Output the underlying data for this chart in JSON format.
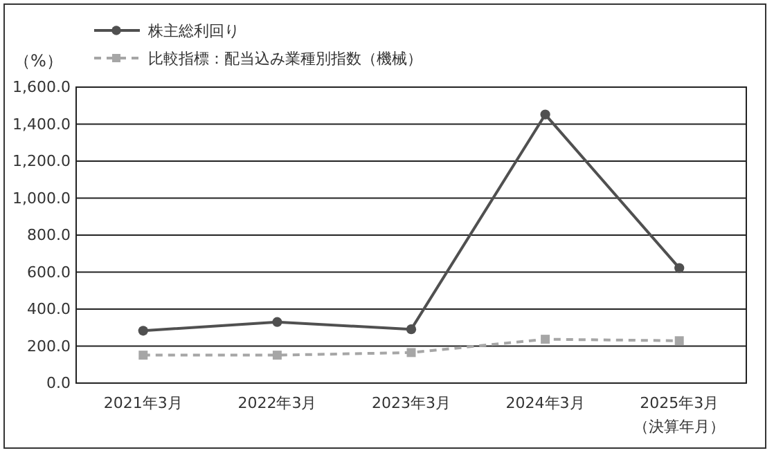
{
  "chart_data": {
    "type": "line",
    "categories": [
      "2021年3月",
      "2022年3月",
      "2023年3月",
      "2024年3月",
      "2025年3月"
    ],
    "series": [
      {
        "name": "株主総利回り",
        "color": "#505050",
        "values": [
          283,
          330,
          291,
          1452,
          622
        ],
        "marker": "circle",
        "line_style": "solid"
      },
      {
        "name": "比較指標：配当込み業種別指数（機械）",
        "color": "#a6a6a6",
        "values": [
          151,
          151,
          165,
          237,
          229
        ],
        "marker": "square",
        "line_style": "dashed"
      }
    ],
    "ylabel": "（%）",
    "xlabel": "（決算年月）",
    "ylim": [
      0,
      1600
    ],
    "yticks": [
      {
        "value": 0,
        "label": "0.0"
      },
      {
        "value": 200,
        "label": "200.0"
      },
      {
        "value": 400,
        "label": "400.0"
      },
      {
        "value": 600,
        "label": "600.0"
      },
      {
        "value": 800,
        "label": "800.0"
      },
      {
        "value": 1000,
        "label": "1,000.0"
      },
      {
        "value": 1200,
        "label": "1,200.0"
      },
      {
        "value": 1400,
        "label": "1,400.0"
      },
      {
        "value": 1600,
        "label": "1,600.0"
      }
    ],
    "grid": "y",
    "legend": "top left"
  }
}
